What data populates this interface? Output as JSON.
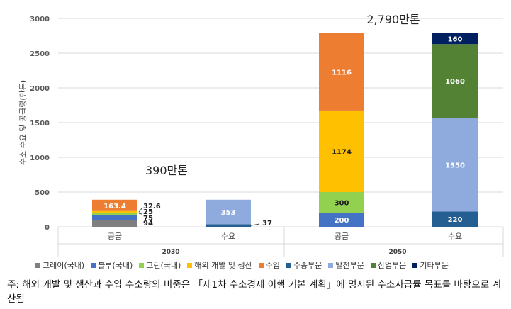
{
  "chart_data": {
    "type": "bar",
    "stacked": true,
    "ylabel": "수소 수요 및 공급량(만톤)",
    "ylim": [
      0,
      3000
    ],
    "yticks": [
      0,
      500,
      1000,
      1500,
      2000,
      2500,
      3000
    ],
    "grid": true,
    "legend_position": "bottom",
    "groups": [
      {
        "year": "2030",
        "total_label": "390만톤",
        "bars": [
          {
            "category": "공급",
            "segments": [
              {
                "series": "그레이(국내)",
                "value": 94,
                "label": "94"
              },
              {
                "series": "블루(국내)",
                "value": 75,
                "label": "75"
              },
              {
                "series": "그린(국내)",
                "value": 25,
                "label": "25"
              },
              {
                "series": "해외 개발 및 생산",
                "value": 32.6,
                "label": "32.6"
              },
              {
                "series": "수입",
                "value": 163.4,
                "label": "163.4"
              }
            ]
          },
          {
            "category": "수요",
            "segments": [
              {
                "series": "수송부문",
                "value": 37,
                "label": "37"
              },
              {
                "series": "발전부문",
                "value": 353,
                "label": "353"
              }
            ]
          }
        ]
      },
      {
        "year": "2050",
        "total_label": "2,790만톤",
        "bars": [
          {
            "category": "공급",
            "segments": [
              {
                "series": "블루(국내)",
                "value": 200,
                "label": "200"
              },
              {
                "series": "그린(국내)",
                "value": 300,
                "label": "300"
              },
              {
                "series": "해외 개발 및 생산",
                "value": 1174,
                "label": "1174"
              },
              {
                "series": "수입",
                "value": 1116,
                "label": "1116"
              }
            ]
          },
          {
            "category": "수요",
            "segments": [
              {
                "series": "수송부문",
                "value": 220,
                "label": "220"
              },
              {
                "series": "발전부문",
                "value": 1350,
                "label": "1350"
              },
              {
                "series": "산업부문",
                "value": 1060,
                "label": "1060"
              },
              {
                "series": "기타부문",
                "value": 160,
                "label": "160"
              }
            ]
          }
        ]
      }
    ],
    "legend": [
      {
        "name": "그레이(국내)",
        "color": "#7f7f7f"
      },
      {
        "name": "블루(국내)",
        "color": "#4472c4"
      },
      {
        "name": "그린(국내)",
        "color": "#92d050"
      },
      {
        "name": "해외 개발 및 생산",
        "color": "#ffc000"
      },
      {
        "name": "수입",
        "color": "#ed7d31"
      },
      {
        "name": "수송부문",
        "color": "#255e91"
      },
      {
        "name": "발전부문",
        "color": "#8faadc"
      },
      {
        "name": "산업부문",
        "color": "#548235"
      },
      {
        "name": "기타부문",
        "color": "#002060"
      }
    ]
  },
  "note": "주: 해외 개발 및 생산과 수입 수소량의 비중은 「제1차 수소경제 이행 기본 계획」에 명시된 수소자급률 목표를 바탕으로 계산됨"
}
